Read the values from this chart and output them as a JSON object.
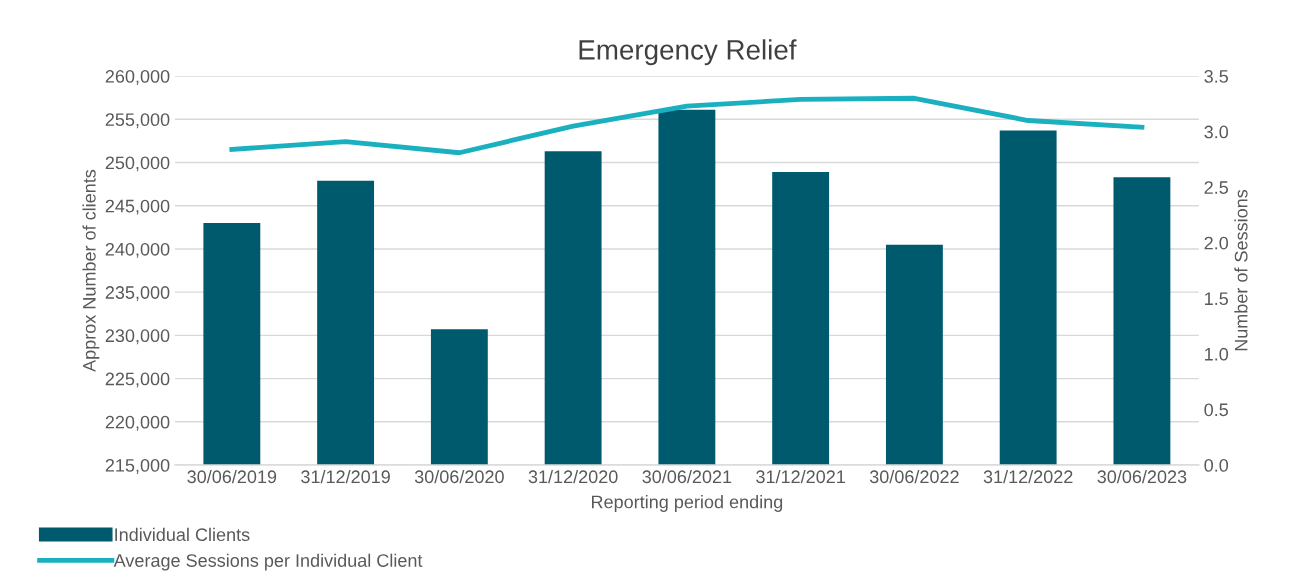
{
  "chart_data": {
    "type": "bar",
    "title": "Emergency Relief",
    "xlabel": "Reporting period ending",
    "ylabel": "Approx Number of clients",
    "y2label": "Number of Sessions",
    "categories": [
      "30/06/2019",
      "31/12/2019",
      "30/06/2020",
      "31/12/2020",
      "30/06/2021",
      "31/12/2021",
      "30/06/2022",
      "31/12/2022",
      "30/06/2023"
    ],
    "series": [
      {
        "name": "Individual Clients",
        "color": "#005a6e",
        "values": [
          243000,
          247900,
          230700,
          251300,
          256100,
          248900,
          240500,
          253700,
          248300
        ]
      },
      {
        "name": "Average Sessions per Individual Client",
        "type": "line",
        "axis": "y2",
        "color": "#1ab0bf",
        "values": [
          2.84,
          2.91,
          2.81,
          3.05,
          3.23,
          3.29,
          3.3,
          3.1,
          3.04
        ]
      }
    ],
    "ylim": [
      215000,
      260000
    ],
    "yticks": [
      {
        "value": 215000,
        "label": "215,000"
      },
      {
        "value": 220000,
        "label": "220,000"
      },
      {
        "value": 225000,
        "label": "225,000"
      },
      {
        "value": 230000,
        "label": "230,000"
      },
      {
        "value": 235000,
        "label": "235,000"
      },
      {
        "value": 240000,
        "label": "240,000"
      },
      {
        "value": 245000,
        "label": "245,000"
      },
      {
        "value": 250000,
        "label": "250,000"
      },
      {
        "value": 255000,
        "label": "255,000"
      },
      {
        "value": 260000,
        "label": "260,000"
      }
    ],
    "y2lim": [
      0,
      3.5
    ],
    "y2ticks": [
      {
        "value": 0,
        "label": "0.0"
      },
      {
        "value": 0.5,
        "label": "0.5"
      },
      {
        "value": 1,
        "label": "1.0"
      },
      {
        "value": 1.5,
        "label": "1.5"
      },
      {
        "value": 2,
        "label": "2.0"
      },
      {
        "value": 2.5,
        "label": "2.5"
      },
      {
        "value": 3,
        "label": "3.0"
      },
      {
        "value": 3.5,
        "label": "3.5"
      }
    ],
    "grid": "y",
    "legend": "bottom left"
  }
}
